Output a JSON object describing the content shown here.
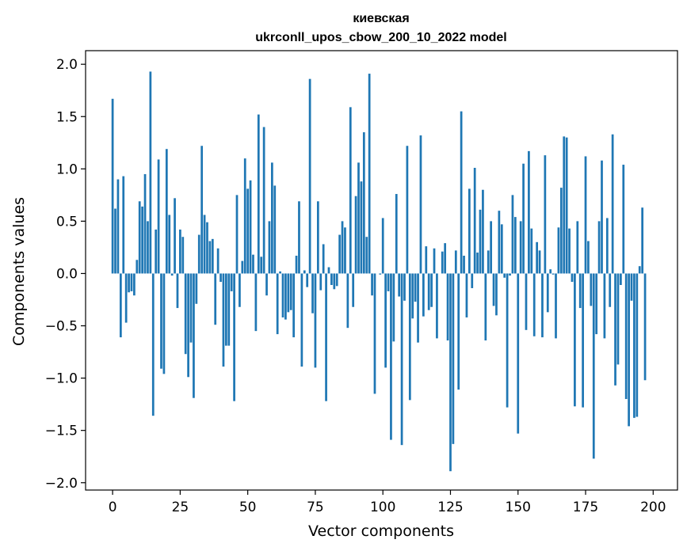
{
  "chart_data": {
    "type": "bar",
    "title_line1": "киевская",
    "title_line2": "ukrconll_upos_cbow_200_10_2022 model",
    "xlabel": "Vector components",
    "ylabel": "Components values",
    "xlim": [
      -10,
      209
    ],
    "ylim": [
      -2.07,
      2.13
    ],
    "xticks": [
      0,
      25,
      50,
      75,
      100,
      125,
      150,
      175,
      200
    ],
    "xtick_labels": [
      "0",
      "25",
      "50",
      "75",
      "100",
      "125",
      "150",
      "175",
      "200"
    ],
    "yticks": [
      -2.0,
      -1.5,
      -1.0,
      -0.5,
      0.0,
      0.5,
      1.0,
      1.5,
      2.0
    ],
    "ytick_labels": [
      "−2.0",
      "−1.5",
      "−1.0",
      "−0.5",
      "0.0",
      "0.5",
      "1.0",
      "1.5",
      "2.0"
    ],
    "grid": false,
    "bar_color": "#1f77b4",
    "values": [
      1.67,
      0.62,
      0.9,
      -0.61,
      0.93,
      -0.47,
      -0.18,
      -0.17,
      -0.21,
      0.13,
      0.69,
      0.64,
      0.95,
      0.5,
      1.93,
      -1.36,
      0.42,
      1.09,
      -0.91,
      -0.96,
      1.19,
      0.56,
      -0.02,
      0.72,
      -0.33,
      0.42,
      0.35,
      -0.77,
      -0.99,
      -0.66,
      -1.19,
      -0.29,
      0.37,
      1.22,
      0.56,
      0.49,
      0.31,
      0.33,
      -0.49,
      0.24,
      -0.08,
      -0.89,
      -0.69,
      -0.69,
      -0.17,
      -1.22,
      0.75,
      -0.32,
      0.12,
      1.1,
      0.81,
      0.89,
      0.18,
      -0.55,
      1.52,
      0.16,
      1.4,
      -0.21,
      0.5,
      1.06,
      0.84,
      -0.58,
      0.02,
      -0.42,
      -0.44,
      -0.37,
      -0.35,
      -0.61,
      0.17,
      0.69,
      -0.89,
      0.03,
      -0.13,
      1.86,
      -0.38,
      -0.9,
      0.69,
      -0.16,
      0.28,
      -1.22,
      0.06,
      -0.11,
      -0.15,
      -0.12,
      0.37,
      0.5,
      0.44,
      -0.52,
      1.59,
      -0.32,
      0.74,
      1.06,
      0.88,
      1.35,
      0.35,
      1.91,
      -0.21,
      -1.15,
      0.0,
      -0.01,
      0.53,
      -0.9,
      -0.17,
      -1.59,
      -0.65,
      0.76,
      -0.22,
      -1.64,
      -0.26,
      1.22,
      -1.21,
      -0.43,
      -0.27,
      -0.66,
      1.32,
      -0.41,
      0.26,
      -0.35,
      -0.32,
      0.24,
      -0.62,
      0.0,
      0.21,
      0.29,
      -0.64,
      -1.89,
      -1.63,
      0.22,
      -1.11,
      1.55,
      0.17,
      -0.42,
      0.81,
      -0.14,
      1.01,
      0.2,
      0.61,
      0.8,
      -0.64,
      0.22,
      0.5,
      -0.31,
      -0.4,
      0.6,
      0.47,
      -0.04,
      -1.28,
      -0.02,
      0.75,
      0.54,
      -1.53,
      0.5,
      1.05,
      -0.54,
      1.17,
      0.43,
      -0.6,
      0.3,
      0.22,
      -0.61,
      1.13,
      -0.37,
      0.04,
      -0.01,
      -0.62,
      0.44,
      0.82,
      1.31,
      1.3,
      0.43,
      -0.08,
      -1.27,
      0.5,
      -0.33,
      -1.28,
      1.12,
      0.31,
      -0.31,
      -1.77,
      -0.58,
      0.5,
      1.08,
      -0.62,
      0.53,
      -0.32,
      1.33,
      -1.07,
      -0.87,
      -0.11,
      1.04,
      -1.2,
      -1.46,
      -0.26,
      -1.38,
      -1.37,
      0.07,
      0.63,
      -1.02
    ]
  }
}
